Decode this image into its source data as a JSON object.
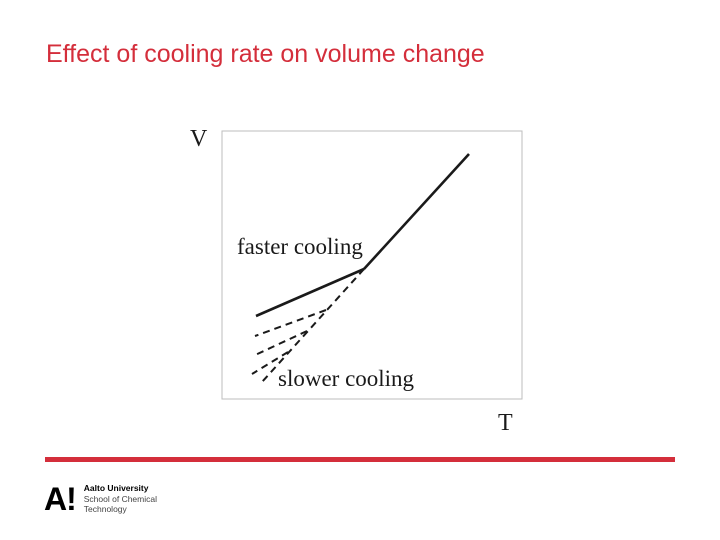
{
  "slide": {
    "title": "Effect of cooling rate on volume change"
  },
  "diagram": {
    "y_axis_label": "V",
    "x_axis_label": "T",
    "faster_label": "faster cooling",
    "slower_label": "slower cooling"
  },
  "footer": {
    "logo_mark": "A!",
    "university": "Aalto University",
    "school_line1": "School of Chemical",
    "school_line2": "Technology"
  },
  "colors": {
    "accent": "#d42e3b",
    "line": "#1a1a1a"
  }
}
